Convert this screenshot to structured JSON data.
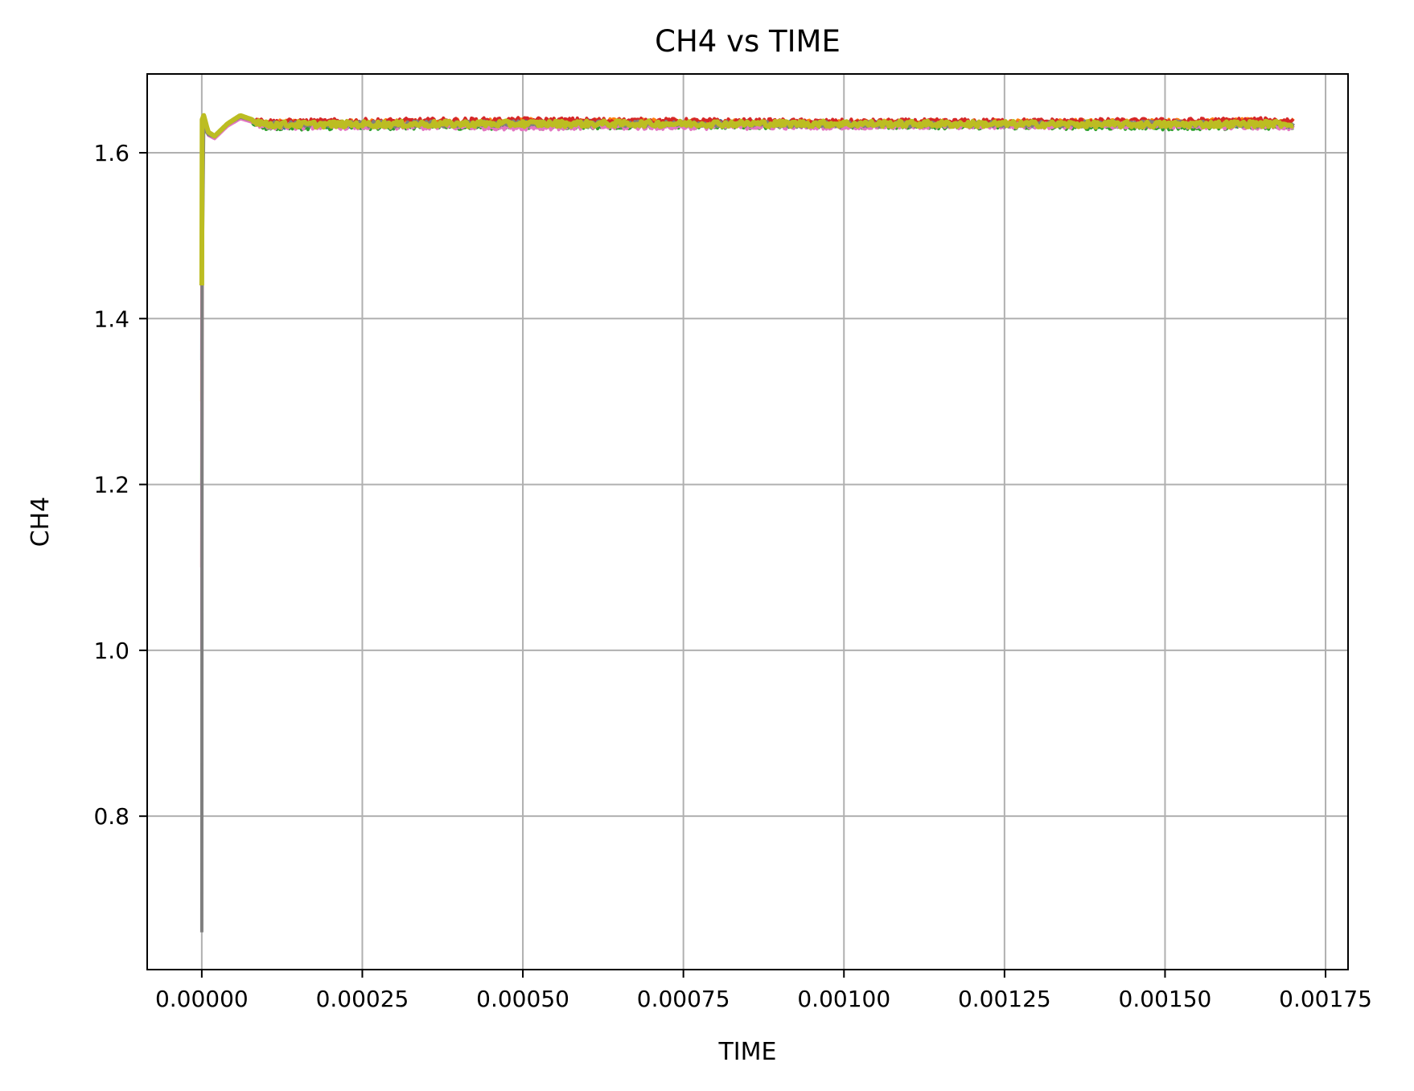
{
  "chart_data": {
    "type": "line",
    "title": "CH4 vs TIME",
    "xlabel": "TIME",
    "ylabel": "CH4",
    "xlim": [
      -8.5e-05,
      0.001785
    ],
    "ylim": [
      0.615,
      1.695
    ],
    "xticks": [
      0.0,
      0.00025,
      0.0005,
      0.00075,
      0.001,
      0.00125,
      0.0015,
      0.00175
    ],
    "xtick_labels": [
      "0.00000",
      "0.00025",
      "0.00050",
      "0.00075",
      "0.00100",
      "0.00125",
      "0.00150",
      "0.00175"
    ],
    "yticks": [
      0.8,
      1.0,
      1.2,
      1.4,
      1.6
    ],
    "ytick_labels": [
      "0.8",
      "1.0",
      "1.2",
      "1.4",
      "1.6"
    ],
    "grid": true,
    "legend": "none",
    "series": [
      {
        "color": "#1f77b4",
        "x": [
          0.0,
          5e-07,
          3e-06,
          1e-05,
          2e-05,
          4e-05,
          6e-05,
          0.0001,
          0.0005,
          0.001,
          0.0015,
          0.0017
        ],
        "y": [
          1.35,
          1.63,
          1.645,
          1.625,
          1.62,
          1.635,
          1.645,
          1.632,
          1.636,
          1.635,
          1.634,
          1.635
        ]
      },
      {
        "color": "#ff7f0e",
        "x": [
          0.0,
          5e-07,
          3e-06,
          1e-05,
          2e-05,
          4e-05,
          6e-05,
          0.0001,
          0.0005,
          0.001,
          0.0015,
          0.0017
        ],
        "y": [
          1.3,
          1.625,
          1.64,
          1.622,
          1.618,
          1.633,
          1.643,
          1.636,
          1.638,
          1.636,
          1.637,
          1.638
        ]
      },
      {
        "color": "#2ca02c",
        "x": [
          0.0,
          5e-07,
          3e-06,
          1e-05,
          2e-05,
          4e-05,
          6e-05,
          0.0001,
          0.0005,
          0.001,
          0.0015,
          0.0017
        ],
        "y": [
          1.2,
          1.62,
          1.638,
          1.623,
          1.619,
          1.634,
          1.642,
          1.631,
          1.632,
          1.633,
          1.631,
          1.632
        ]
      },
      {
        "color": "#d62728",
        "x": [
          0.0,
          5e-07,
          3e-06,
          1e-05,
          2e-05,
          4e-05,
          6e-05,
          0.0001,
          0.0005,
          0.001,
          0.0015,
          0.0017
        ],
        "y": [
          1.1,
          1.63,
          1.642,
          1.624,
          1.62,
          1.635,
          1.644,
          1.637,
          1.639,
          1.637,
          1.638,
          1.639
        ]
      },
      {
        "color": "#e377c2",
        "x": [
          0.0,
          5e-07,
          3e-06,
          1e-05,
          2e-05,
          4e-05,
          6e-05,
          0.0001,
          0.0005,
          0.001,
          0.0015,
          0.0017
        ],
        "y": [
          1.0,
          1.62,
          1.64,
          1.621,
          1.617,
          1.632,
          1.641,
          1.632,
          1.631,
          1.632,
          1.633,
          1.631
        ]
      },
      {
        "color": "#7f7f7f",
        "x": [
          0.0,
          5e-07,
          3e-06,
          1e-05,
          2e-05,
          4e-05,
          6e-05,
          0.0001,
          0.0005,
          0.001,
          0.0015,
          0.0017
        ],
        "y": [
          0.66,
          1.44,
          1.63,
          1.622,
          1.619,
          1.634,
          1.643,
          1.634,
          1.635,
          1.634,
          1.635,
          1.634
        ]
      },
      {
        "color": "#bcbd22",
        "x": [
          0.0,
          5e-07,
          3e-06,
          1e-05,
          2e-05,
          4e-05,
          6e-05,
          0.0001,
          0.0005,
          0.001,
          0.0015,
          0.0017
        ],
        "y": [
          1.44,
          1.64,
          1.645,
          1.625,
          1.62,
          1.635,
          1.645,
          1.634,
          1.635,
          1.635,
          1.634,
          1.635
        ]
      }
    ]
  }
}
